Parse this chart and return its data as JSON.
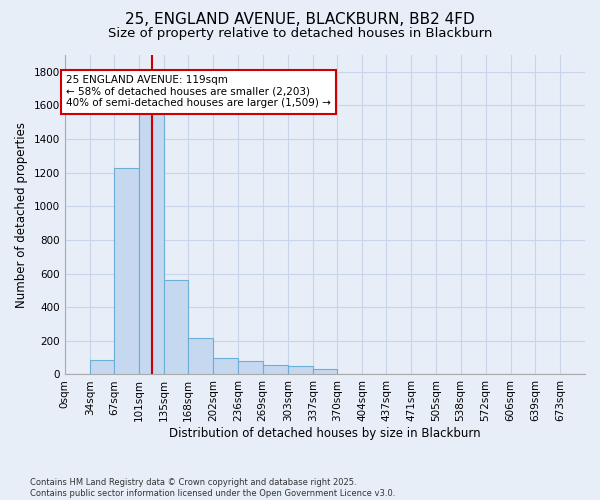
{
  "title1": "25, ENGLAND AVENUE, BLACKBURN, BB2 4FD",
  "title2": "Size of property relative to detached houses in Blackburn",
  "xlabel": "Distribution of detached houses by size in Blackburn",
  "ylabel": "Number of detached properties",
  "annotation_title": "25 ENGLAND AVENUE: 119sqm",
  "annotation_line1": "← 58% of detached houses are smaller (2,203)",
  "annotation_line2": "40% of semi-detached houses are larger (1,509) →",
  "vline_x": 119,
  "bar_values": [
    0,
    85,
    1230,
    1790,
    560,
    215,
    100,
    80,
    55,
    50,
    35,
    0,
    0,
    0,
    0,
    0,
    0,
    0,
    0,
    0,
    0
  ],
  "bin_edges": [
    0,
    34,
    67,
    101,
    135,
    168,
    202,
    236,
    269,
    303,
    337,
    370,
    404,
    437,
    471,
    505,
    538,
    572,
    606,
    639,
    673,
    707
  ],
  "bar_categories": [
    "0sqm",
    "34sqm",
    "67sqm",
    "101sqm",
    "135sqm",
    "168sqm",
    "202sqm",
    "236sqm",
    "269sqm",
    "303sqm",
    "337sqm",
    "370sqm",
    "404sqm",
    "437sqm",
    "471sqm",
    "505sqm",
    "538sqm",
    "572sqm",
    "606sqm",
    "639sqm",
    "673sqm"
  ],
  "bar_color": "#c5d8f0",
  "bar_edge_color": "#6baed6",
  "vline_color": "#cc0000",
  "grid_color": "#c8d4e8",
  "background_color": "#e8eef8",
  "annotation_box_facecolor": "#ffffff",
  "annotation_border_color": "#cc0000",
  "ylim": [
    0,
    1900
  ],
  "yticks": [
    0,
    200,
    400,
    600,
    800,
    1000,
    1200,
    1400,
    1600,
    1800
  ],
  "footnote1": "Contains HM Land Registry data © Crown copyright and database right 2025.",
  "footnote2": "Contains public sector information licensed under the Open Government Licence v3.0.",
  "title_fontsize": 11,
  "subtitle_fontsize": 9.5,
  "label_fontsize": 8.5,
  "tick_fontsize": 7.5,
  "annot_fontsize": 7.5
}
